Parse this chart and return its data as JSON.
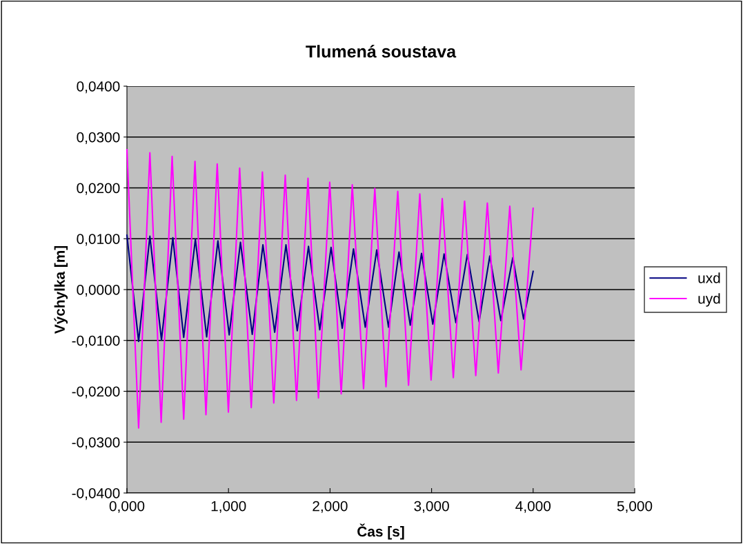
{
  "chart_data": {
    "type": "line",
    "title": "Tlumená soustava",
    "xlabel": "Čas [s]",
    "ylabel": "Výchylka [m]",
    "xlim": [
      0,
      5
    ],
    "xticks": [
      {
        "value": 0,
        "label": "0,000"
      },
      {
        "value": 1,
        "label": "1,000"
      },
      {
        "value": 2,
        "label": "2,000"
      },
      {
        "value": 3,
        "label": "3,000"
      },
      {
        "value": 4,
        "label": "4,000"
      },
      {
        "value": 5,
        "label": "5,000"
      }
    ],
    "ylim": [
      -0.04,
      0.04
    ],
    "yticks": [
      {
        "value": -0.04,
        "label": "-0,0400"
      },
      {
        "value": -0.03,
        "label": "-0,0300"
      },
      {
        "value": -0.02,
        "label": "-0,0200"
      },
      {
        "value": -0.01,
        "label": "-0,0100"
      },
      {
        "value": 0,
        "label": "0,0000"
      },
      {
        "value": 0.01,
        "label": "0,0100"
      },
      {
        "value": 0.02,
        "label": "0,0200"
      },
      {
        "value": 0.03,
        "label": "0,0300"
      },
      {
        "value": 0.04,
        "label": "0,0400"
      }
    ],
    "grid": "y",
    "legend": "right",
    "marker": "none",
    "line_style": "solid",
    "series": [
      {
        "name": "uxd",
        "color": "#000080",
        "x": [
          0,
          0.115,
          0.226,
          0.34,
          0.452,
          0.559,
          0.674,
          0.785,
          0.896,
          1.007,
          1.118,
          1.234,
          1.339,
          1.455,
          1.566,
          1.677,
          1.788,
          1.899,
          2.01,
          2.12,
          2.231,
          2.347,
          2.46,
          2.576,
          2.679,
          2.79,
          2.901,
          3.012,
          3.123,
          3.239,
          3.352,
          3.468,
          3.573,
          3.682,
          3.8,
          3.906,
          4.0
        ],
        "values": [
          0.0107,
          -0.0102,
          0.0105,
          -0.0099,
          0.0102,
          -0.0094,
          0.0099,
          -0.0093,
          0.0096,
          -0.0089,
          0.0093,
          -0.0088,
          0.0088,
          -0.0084,
          0.0088,
          -0.0081,
          0.0085,
          -0.0079,
          0.0083,
          -0.0076,
          0.008,
          -0.0074,
          0.0078,
          -0.0074,
          0.0074,
          -0.007,
          0.0071,
          -0.0068,
          0.007,
          -0.0065,
          0.0069,
          -0.0063,
          0.0066,
          -0.0061,
          0.0063,
          -0.0058,
          0.0036
        ]
      },
      {
        "name": "uyd",
        "color": "#ff00ff",
        "x": [
          0,
          0.115,
          0.226,
          0.337,
          0.445,
          0.559,
          0.67,
          0.778,
          0.889,
          0.999,
          1.11,
          1.224,
          1.334,
          1.446,
          1.559,
          1.67,
          1.783,
          1.886,
          1.997,
          2.11,
          2.219,
          2.33,
          2.441,
          2.551,
          2.667,
          2.773,
          2.884,
          2.995,
          3.105,
          3.214,
          3.325,
          3.435,
          3.549,
          3.657,
          3.77,
          3.881,
          4.0
        ],
        "values": [
          0.0275,
          -0.0272,
          0.0269,
          -0.0261,
          0.0262,
          -0.0255,
          0.0252,
          -0.0246,
          0.0247,
          -0.0241,
          0.0239,
          -0.0232,
          0.0231,
          -0.0223,
          0.0225,
          -0.0218,
          0.0219,
          -0.0213,
          0.0211,
          -0.0205,
          0.0206,
          -0.0195,
          0.0199,
          -0.0191,
          0.0193,
          -0.0188,
          0.0188,
          -0.0178,
          0.0179,
          -0.0173,
          0.0174,
          -0.0169,
          0.017,
          -0.0164,
          0.0164,
          -0.0158,
          0.016
        ]
      }
    ]
  }
}
